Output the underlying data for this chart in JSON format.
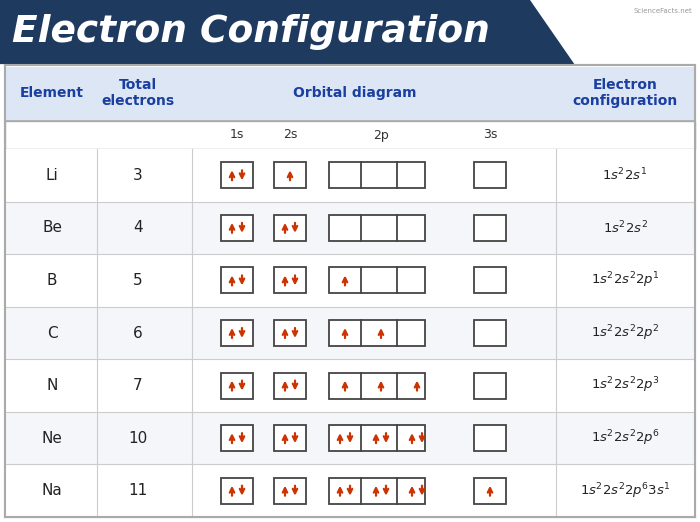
{
  "title": "Electron Configuration",
  "title_bg": "#1e3a5f",
  "title_text_color": "#ffffff",
  "header_bg": "#dce6f5",
  "header_text_color": "#1a3fa0",
  "table_bg": "#ffffff",
  "box_border_color": "#444444",
  "electron_color": "#cc3300",
  "elements": [
    "Li",
    "Be",
    "B",
    "C",
    "N",
    "Ne",
    "Na"
  ],
  "total_electrons": [
    3,
    4,
    5,
    6,
    7,
    10,
    11
  ],
  "orbital_labels": [
    "1s",
    "2s",
    "2p",
    "3s"
  ],
  "orbital_data": [
    {
      "1s": 2,
      "2s": 1,
      "2p": [
        0,
        0,
        0
      ],
      "3s": 0
    },
    {
      "1s": 2,
      "2s": 2,
      "2p": [
        0,
        0,
        0
      ],
      "3s": 0
    },
    {
      "1s": 2,
      "2s": 2,
      "2p": [
        1,
        0,
        0
      ],
      "3s": 0
    },
    {
      "1s": 2,
      "2s": 2,
      "2p": [
        1,
        1,
        0
      ],
      "3s": 0
    },
    {
      "1s": 2,
      "2s": 2,
      "2p": [
        1,
        1,
        1
      ],
      "3s": 0
    },
    {
      "1s": 2,
      "2s": 2,
      "2p": [
        2,
        2,
        2
      ],
      "3s": 0
    },
    {
      "1s": 2,
      "2s": 2,
      "2p": [
        2,
        2,
        2
      ],
      "3s": 1
    }
  ],
  "configs_latex": [
    "$1s^22s^1$",
    "$1s^22s^2$",
    "$1s^22s^22p^1$",
    "$1s^22s^22p^2$",
    "$1s^22s^22p^3$",
    "$1s^22s^22p^6$",
    "$1s^22s^22p^63s^1$"
  ],
  "fig_width": 7.0,
  "fig_height": 5.22,
  "dpi": 100
}
